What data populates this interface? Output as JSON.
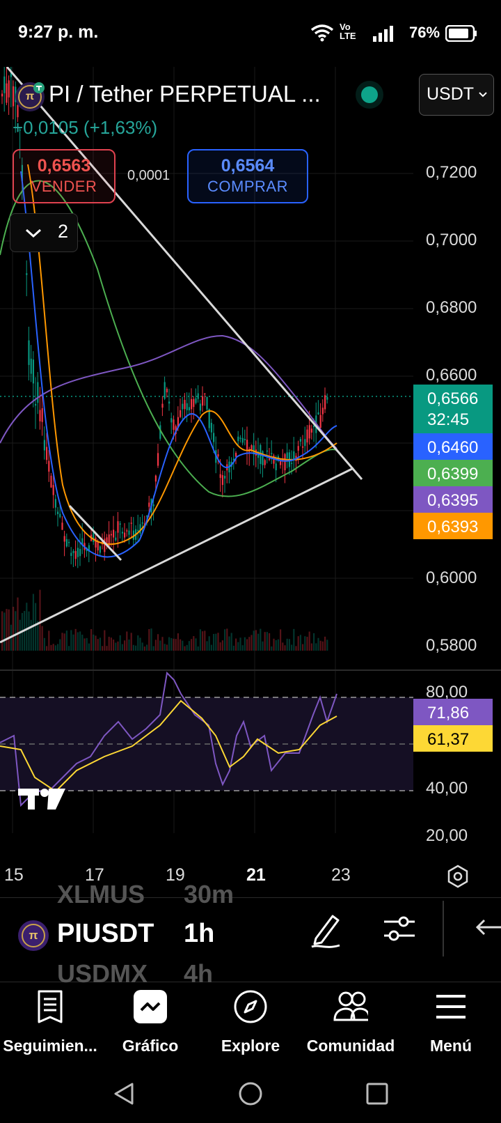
{
  "status_bar": {
    "time": "9:27 p. m.",
    "network": "Vo LTE",
    "battery": "76%"
  },
  "header": {
    "symbol_title": "PI / Tether PERPETUAL ...",
    "change": "+0,0105 (+1,63%)",
    "currency": "USDT",
    "live_status_color": "#0ea48a"
  },
  "trade": {
    "sell_price": "0,6563",
    "sell_label": "VENDER",
    "spread": "0,0001",
    "buy_price": "0,6564",
    "buy_label": "COMPRAR"
  },
  "indicators_toggle": {
    "count": "2"
  },
  "price_axis": {
    "labels": [
      "0,7200",
      "0,7000",
      "0,6800",
      "0,6600",
      "0,6000",
      "0,5800"
    ],
    "tags": {
      "last": "0,6566",
      "countdown": "32:45",
      "blue_ma": "0,6460",
      "green_ma": "0,6399",
      "purple_ma": "0,6395",
      "orange_ma": "0,6393"
    }
  },
  "oscillator_axis": {
    "labels": [
      "80,00",
      "40,00",
      "20,00"
    ],
    "tags": {
      "rsi": "71,86",
      "rsi_ma": "61,37"
    }
  },
  "time_axis": [
    "15",
    "17",
    "19",
    "21",
    "23"
  ],
  "toolbar": {
    "ticker_above": "XLMUS",
    "ticker": "PIUSDT",
    "ticker_below": "USDMX",
    "interval_above": "30m",
    "interval": "1h",
    "interval_below": "4h"
  },
  "nav": [
    {
      "label": "Seguimien...",
      "icon": "watchlist-icon"
    },
    {
      "label": "Gráfico",
      "icon": "chart-icon"
    },
    {
      "label": "Explore",
      "icon": "compass-icon"
    },
    {
      "label": "Comunidad",
      "icon": "community-icon"
    },
    {
      "label": "Menú",
      "icon": "menu-icon"
    }
  ],
  "colors": {
    "up": "#089981",
    "down": "#f23645",
    "ma_blue": "#2962ff",
    "ma_green": "#4caf50",
    "ma_purple": "#7e57c2",
    "ma_orange": "#ff9800",
    "rsi": "#7e57c2",
    "rsi_ma": "#fdd835"
  },
  "chart_data": {
    "type": "candlestick",
    "title": "PI / Tether PERPETUAL ...",
    "ylim": [
      0.58,
      0.73
    ],
    "x_ticks": [
      "15",
      "17",
      "19",
      "21",
      "23"
    ],
    "y_ticks": [
      "0,7200",
      "0,7000",
      "0,6800",
      "0,6600",
      "0,6000",
      "0,5800"
    ],
    "last_price": 0.6566,
    "moving_averages": [
      {
        "color": "blue",
        "value": 0.646
      },
      {
        "color": "green",
        "value": 0.6399
      },
      {
        "color": "purple",
        "value": 0.6395
      },
      {
        "color": "orange",
        "value": 0.6393
      }
    ],
    "rsi": {
      "value": 71.86,
      "ma": 61.37,
      "ylim": [
        20,
        80
      ]
    }
  }
}
